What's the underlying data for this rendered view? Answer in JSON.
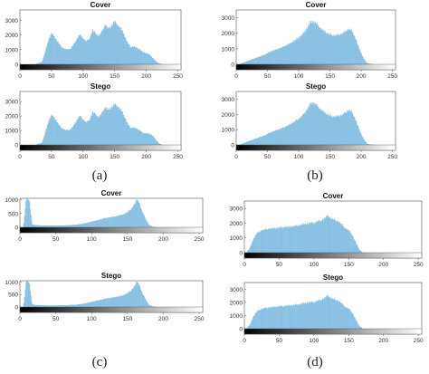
{
  "panel_labels": [
    "(a)",
    "(b)",
    "(c)",
    "(d)"
  ],
  "chart_data": [
    {
      "type": "bar",
      "panel": "(a)",
      "title": "Cover",
      "xlim": [
        0,
        255
      ],
      "ylim": [
        0,
        3700
      ],
      "yticks": [
        0,
        1000,
        2000,
        3000
      ],
      "xticks": [
        0,
        50,
        100,
        150,
        200,
        250
      ],
      "x": [
        5,
        15,
        25,
        35,
        40,
        45,
        50,
        55,
        60,
        65,
        70,
        75,
        80,
        85,
        90,
        95,
        100,
        105,
        110,
        115,
        120,
        125,
        130,
        135,
        140,
        145,
        150,
        155,
        160,
        165,
        170,
        175,
        180,
        185,
        190,
        195,
        200,
        205,
        210,
        215,
        220,
        225,
        235,
        245
      ],
      "y": [
        0,
        0,
        0,
        150,
        800,
        1600,
        2100,
        1850,
        1500,
        1200,
        1050,
        1000,
        1050,
        1300,
        1700,
        2000,
        1750,
        1550,
        1700,
        2300,
        2100,
        1900,
        2200,
        2700,
        2400,
        2600,
        2900,
        2650,
        2400,
        2000,
        1500,
        1150,
        1200,
        1100,
        1000,
        800,
        750,
        650,
        450,
        200,
        50,
        0,
        0,
        0
      ]
    },
    {
      "type": "bar",
      "panel": "(a)",
      "title": "Stego",
      "xlim": [
        0,
        255
      ],
      "ylim": [
        0,
        3700
      ],
      "yticks": [
        0,
        1000,
        2000,
        3000
      ],
      "xticks": [
        0,
        50,
        100,
        150,
        200,
        250
      ],
      "x": [
        5,
        15,
        25,
        35,
        40,
        45,
        50,
        55,
        60,
        65,
        70,
        75,
        80,
        85,
        90,
        95,
        100,
        105,
        110,
        115,
        120,
        125,
        130,
        135,
        140,
        145,
        150,
        155,
        160,
        165,
        170,
        175,
        180,
        185,
        190,
        195,
        200,
        205,
        210,
        215,
        220,
        225,
        235,
        245
      ],
      "y": [
        0,
        0,
        0,
        150,
        800,
        1600,
        2050,
        1850,
        1500,
        1200,
        1050,
        1000,
        1050,
        1300,
        1700,
        2000,
        1750,
        1550,
        1700,
        2250,
        2100,
        1900,
        2200,
        2600,
        2400,
        2600,
        2800,
        2650,
        2400,
        2000,
        1500,
        1150,
        1200,
        1100,
        1000,
        800,
        800,
        750,
        650,
        350,
        100,
        0,
        0,
        0
      ]
    },
    {
      "type": "bar",
      "panel": "(b)",
      "title": "Cover",
      "xlim": [
        0,
        255
      ],
      "ylim": [
        0,
        3500
      ],
      "yticks": [
        0,
        1000,
        2000,
        3000
      ],
      "xticks": [
        0,
        50,
        100,
        150,
        200,
        250
      ],
      "x": [
        5,
        15,
        25,
        35,
        45,
        55,
        65,
        75,
        85,
        95,
        100,
        105,
        110,
        115,
        120,
        125,
        130,
        135,
        140,
        145,
        150,
        155,
        160,
        165,
        170,
        175,
        180,
        185,
        190,
        195,
        200,
        205,
        210,
        220,
        235,
        245
      ],
      "y": [
        0,
        150,
        300,
        450,
        600,
        800,
        950,
        1100,
        1300,
        1550,
        1700,
        1850,
        2100,
        2400,
        2750,
        2700,
        2550,
        2300,
        2150,
        2000,
        1900,
        1850,
        1850,
        1900,
        1950,
        2100,
        2250,
        2150,
        1750,
        1200,
        700,
        300,
        50,
        0,
        0,
        0
      ]
    },
    {
      "type": "bar",
      "panel": "(b)",
      "title": "Stego",
      "xlim": [
        0,
        255
      ],
      "ylim": [
        0,
        3500
      ],
      "yticks": [
        0,
        1000,
        2000,
        3000
      ],
      "xticks": [
        0,
        50,
        100,
        150,
        200,
        250
      ],
      "x": [
        5,
        15,
        25,
        35,
        45,
        55,
        65,
        75,
        85,
        95,
        100,
        105,
        110,
        115,
        120,
        125,
        130,
        135,
        140,
        145,
        150,
        155,
        160,
        165,
        170,
        175,
        180,
        185,
        190,
        195,
        200,
        205,
        210,
        220,
        235,
        245
      ],
      "y": [
        0,
        150,
        300,
        450,
        600,
        800,
        950,
        1100,
        1300,
        1550,
        1700,
        1850,
        2100,
        2400,
        2750,
        2700,
        2550,
        2300,
        2150,
        2000,
        1900,
        1850,
        1850,
        1900,
        1950,
        2100,
        2250,
        2150,
        1750,
        1200,
        700,
        300,
        50,
        0,
        0,
        0
      ]
    },
    {
      "type": "bar",
      "panel": "(c)",
      "title": "Cover",
      "xlim": [
        0,
        255
      ],
      "ylim": [
        0,
        1050
      ],
      "yticks": [
        0,
        500,
        1000
      ],
      "xticks": [
        0,
        50,
        100,
        150,
        200,
        250
      ],
      "x": [
        5,
        9,
        13,
        17,
        21,
        25,
        30,
        40,
        50,
        60,
        70,
        80,
        90,
        100,
        110,
        120,
        130,
        140,
        145,
        150,
        155,
        160,
        163,
        166,
        170,
        175,
        180,
        185,
        190,
        195,
        205,
        215,
        230,
        245
      ],
      "y": [
        0,
        1050,
        1000,
        100,
        80,
        70,
        60,
        55,
        55,
        60,
        75,
        90,
        130,
        200,
        260,
        330,
        370,
        430,
        470,
        540,
        650,
        830,
        1000,
        930,
        600,
        320,
        80,
        20,
        0,
        0,
        0,
        0,
        0,
        0
      ]
    },
    {
      "type": "bar",
      "panel": "(c)",
      "title": "Stego",
      "xlim": [
        0,
        255
      ],
      "ylim": [
        0,
        1050
      ],
      "yticks": [
        0,
        500,
        1000
      ],
      "xticks": [
        0,
        50,
        100,
        150,
        200,
        250
      ],
      "x": [
        5,
        9,
        13,
        17,
        21,
        25,
        30,
        40,
        50,
        60,
        70,
        80,
        90,
        100,
        110,
        120,
        130,
        140,
        145,
        150,
        155,
        160,
        163,
        166,
        170,
        175,
        180,
        185,
        190,
        195,
        205,
        215,
        230,
        245
      ],
      "y": [
        0,
        1050,
        1000,
        100,
        80,
        70,
        60,
        55,
        55,
        60,
        75,
        90,
        130,
        200,
        260,
        330,
        370,
        430,
        470,
        540,
        650,
        830,
        1000,
        930,
        600,
        320,
        80,
        20,
        0,
        0,
        0,
        0,
        0,
        0
      ]
    },
    {
      "type": "bar",
      "panel": "(d)",
      "title": "Cover",
      "xlim": [
        0,
        255
      ],
      "ylim": [
        0,
        3500
      ],
      "yticks": [
        0,
        1000,
        2000,
        3000
      ],
      "xticks": [
        0,
        50,
        100,
        150,
        200,
        250
      ],
      "x": [
        3,
        8,
        13,
        18,
        25,
        35,
        45,
        55,
        65,
        75,
        85,
        95,
        100,
        105,
        110,
        115,
        120,
        125,
        130,
        135,
        140,
        145,
        150,
        155,
        160,
        165,
        170,
        180,
        200,
        230,
        250
      ],
      "y": [
        0,
        300,
        900,
        1300,
        1500,
        1600,
        1650,
        1700,
        1750,
        1800,
        1900,
        2000,
        2000,
        2100,
        2150,
        2300,
        2500,
        2300,
        2200,
        2100,
        1900,
        1650,
        1500,
        1200,
        700,
        200,
        0,
        0,
        0,
        0,
        0
      ]
    },
    {
      "type": "bar",
      "panel": "(d)",
      "title": "Stego",
      "xlim": [
        0,
        255
      ],
      "ylim": [
        0,
        3500
      ],
      "yticks": [
        0,
        1000,
        2000,
        3000
      ],
      "xticks": [
        0,
        50,
        100,
        150,
        200,
        250
      ],
      "x": [
        3,
        8,
        13,
        18,
        25,
        35,
        45,
        55,
        65,
        75,
        85,
        95,
        100,
        105,
        110,
        115,
        120,
        125,
        130,
        135,
        140,
        145,
        150,
        155,
        160,
        165,
        170,
        180,
        200,
        230,
        250
      ],
      "y": [
        0,
        300,
        900,
        1300,
        1500,
        1600,
        1650,
        1700,
        1750,
        1800,
        1900,
        2000,
        2000,
        2100,
        2150,
        2300,
        2500,
        2300,
        2200,
        2100,
        1900,
        1650,
        1500,
        1200,
        700,
        200,
        0,
        0,
        0,
        0,
        0
      ]
    }
  ]
}
